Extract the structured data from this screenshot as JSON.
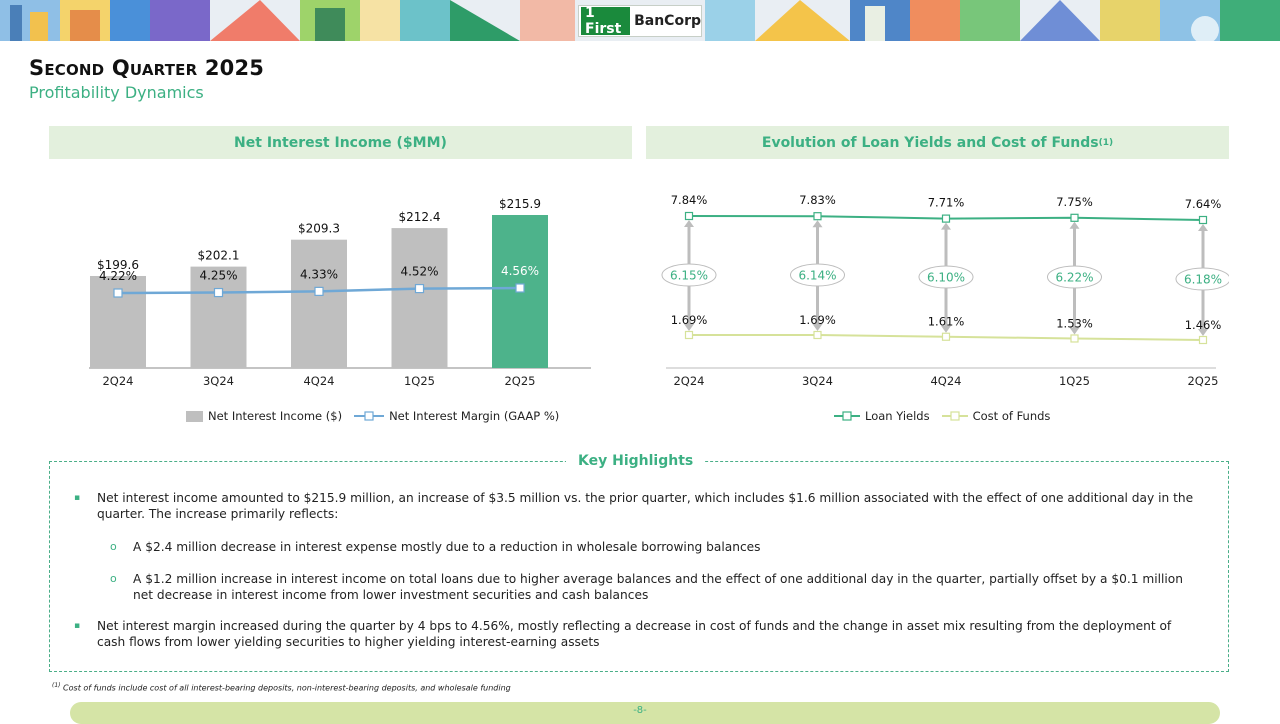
{
  "brand": {
    "mark": "1 First",
    "name": "BanCorp",
    "color": "#1a8a3c"
  },
  "page": {
    "title": "Second Quarter 2025",
    "subtitle": "Profitability Dynamics",
    "page_number": "-8-"
  },
  "panels": {
    "left_title": "Net Interest Income ($MM)",
    "right_title": "Evolution of Loan Yields and Cost of Funds",
    "right_title_sup": "(1)"
  },
  "chart_data": [
    {
      "type": "bar",
      "categories": [
        "2Q24",
        "3Q24",
        "4Q24",
        "1Q25",
        "2Q25"
      ],
      "series": [
        {
          "name": "Net Interest Income ($)",
          "kind": "bar",
          "values": [
            199.6,
            202.1,
            209.3,
            212.4,
            215.9
          ],
          "labels": [
            "$199.6",
            "$202.1",
            "$209.3",
            "$212.4",
            "$215.9"
          ],
          "color": "#bfbfbf",
          "highlight_color": "#4db38b"
        },
        {
          "name": "Net Interest Margin (GAAP %)",
          "kind": "line",
          "values": [
            4.22,
            4.25,
            4.33,
            4.52,
            4.56
          ],
          "labels": [
            "4.22%",
            "4.25%",
            "4.33%",
            "4.52%",
            "4.56%"
          ],
          "color": "#6fa8d6"
        }
      ],
      "legend_position": "bottom"
    },
    {
      "type": "line",
      "categories": [
        "2Q24",
        "3Q24",
        "4Q24",
        "1Q25",
        "2Q25"
      ],
      "series": [
        {
          "name": "Loan Yields",
          "values": [
            7.84,
            7.83,
            7.71,
            7.75,
            7.64
          ],
          "labels": [
            "7.84%",
            "7.83%",
            "7.71%",
            "7.75%",
            "7.64%"
          ],
          "color": "#3cb083"
        },
        {
          "name": "Cost of Funds",
          "values": [
            1.69,
            1.69,
            1.61,
            1.53,
            1.46
          ],
          "labels": [
            "1.69%",
            "1.69%",
            "1.61%",
            "1.53%",
            "1.46%"
          ],
          "color": "#d6e29a"
        }
      ],
      "spread_labels": [
        "6.15%",
        "6.14%",
        "6.10%",
        "6.22%",
        "6.18%"
      ],
      "legend_position": "bottom"
    }
  ],
  "highlights": {
    "title": "Key Highlights",
    "b1": "Net interest income amounted to $215.9 million, an increase of $3.5 million vs. the prior quarter, which includes $1.6 million associated with the effect of one additional day in the quarter. The increase primarily reflects:",
    "s1": "A $2.4 million decrease in interest expense mostly due to a reduction in wholesale borrowing balances",
    "s2": "A $1.2 million increase in interest income on total loans due to higher average balances and the effect of one additional day in the quarter, partially offset by a $0.1 million net decrease in interest income from lower investment securities and cash balances",
    "b2": "Net interest margin increased during the quarter by 4 bps to 4.56%, mostly reflecting a decrease in cost of funds and the change in asset mix resulting from the deployment of cash flows from lower yielding securities to higher yielding interest-earning assets",
    "square_marker": "▪",
    "circle_marker": "o"
  },
  "footnote": {
    "sup": "(1)",
    "text": "Cost of funds include cost of all interest-bearing deposits, non-interest-bearing deposits, and wholesale funding"
  }
}
